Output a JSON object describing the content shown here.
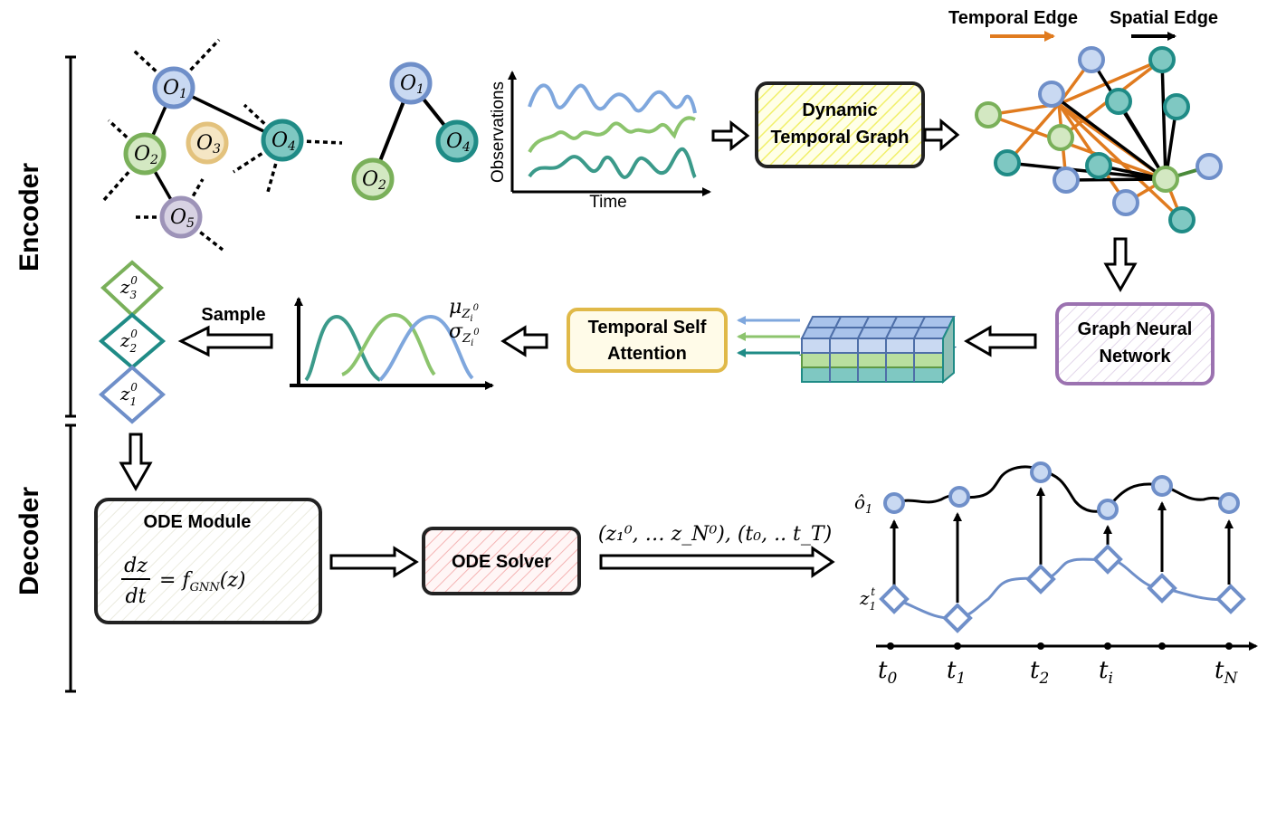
{
  "sections": {
    "encoder": "Encoder",
    "decoder": "Decoder"
  },
  "legend": {
    "temporal_edge": "Temporal Edge",
    "spatial_edge": "Spatial Edge",
    "temporal_color": "#e07b1f",
    "spatial_color": "#000000"
  },
  "graph_full": {
    "nodes": [
      {
        "id": "O1",
        "base": "O",
        "sub": "1",
        "color": "#6f8fc9",
        "fill": "#c9d9f2"
      },
      {
        "id": "O2",
        "base": "O",
        "sub": "2",
        "color": "#7ab05a",
        "fill": "#d3e8c2"
      },
      {
        "id": "O3",
        "base": "O",
        "sub": "3",
        "color": "#e3c27d",
        "fill": "#f5e6c4"
      },
      {
        "id": "O4",
        "base": "O",
        "sub": "4",
        "color": "#1f8b86",
        "fill": "#7fc8c2"
      },
      {
        "id": "O5",
        "base": "O",
        "sub": "5",
        "color": "#9d93b8",
        "fill": "#d7d2e3"
      }
    ]
  },
  "graph_sub": {
    "nodes": [
      {
        "id": "O1",
        "base": "O",
        "sub": "1"
      },
      {
        "id": "O2",
        "base": "O",
        "sub": "2"
      },
      {
        "id": "O4",
        "base": "O",
        "sub": "4"
      }
    ]
  },
  "observations_plot": {
    "ylabel": "Observations",
    "xlabel": "Time",
    "series_colors": [
      "#7fa7dd",
      "#8cc46d",
      "#3b9a8a"
    ]
  },
  "boxes": {
    "dynamic_graph": {
      "line1": "Dynamic",
      "line2": "Temporal Graph",
      "color": "#f1f06a"
    },
    "gnn": {
      "line1": "Graph Neural",
      "line2": "Network",
      "color": "#9b72b0"
    },
    "tsa": {
      "line1": "Temporal Self",
      "line2": "Attention",
      "color": "#e0b948"
    },
    "ode_module": {
      "title": "ODE Module",
      "eq_num": "dz",
      "eq_den": "dt",
      "eq_rhs_f": "f",
      "eq_rhs_sub": "GNN",
      "eq_rhs_arg": "(z)",
      "color": "#d9d9c8"
    },
    "ode_solver": {
      "label": "ODE Solver",
      "color": "#f08a8a"
    }
  },
  "latent": {
    "sample_label": "Sample",
    "mu": "μ",
    "sigma": "σ",
    "stat_sub": "Z",
    "stat_sub2": "i",
    "stat_sup": "0",
    "z_nodes": [
      {
        "sub": "3",
        "sup": "0",
        "color": "#7ab05a"
      },
      {
        "sub": "2",
        "sup": "0",
        "color": "#1f8b86"
      },
      {
        "sub": "1",
        "sup": "0",
        "color": "#6f8fc9"
      }
    ],
    "curve_colors": [
      "#3b9a8a",
      "#8cc46d",
      "#7fa7dd"
    ]
  },
  "solver_output": {
    "text": "(z₁⁰, … z_N⁰), (t₀, .. t_T)"
  },
  "trajectory": {
    "obs_label_base": "ô",
    "obs_label_sub": "1",
    "latent_label_base": "z",
    "latent_label_sub": "1",
    "latent_label_sup": "t",
    "time_labels": [
      {
        "base": "t",
        "sub": "0"
      },
      {
        "base": "t",
        "sub": "1"
      },
      {
        "base": "t",
        "sub": "2"
      },
      {
        "base": "t",
        "sub": "i"
      },
      {
        "base": "t",
        "sub": "N"
      }
    ],
    "node_color": "#6f8fc9",
    "node_fill": "#c9d9f2"
  }
}
